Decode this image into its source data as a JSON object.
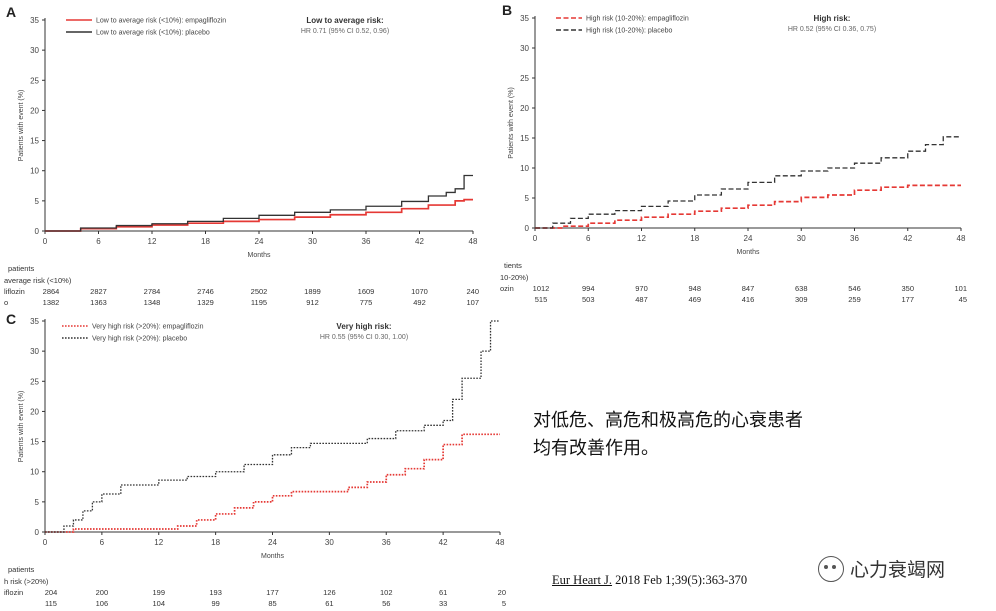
{
  "colors": {
    "empagliflozin": "#e53935",
    "placebo": "#333333"
  },
  "caption": {
    "line1": "对低危、高危和极高危的心衰患者",
    "line2": "均有改善作用。"
  },
  "citation": {
    "journal": "Eur Heart J.",
    "rest": " 2018 Feb 1;39(5):363-370"
  },
  "brand": {
    "name": "心力衰竭网"
  },
  "chart_data": [
    {
      "panel": "A",
      "type": "line",
      "title": "Low to average risk:",
      "subtitle": "HR 0.71 (95% CI 0.52, 0.96)",
      "xlabel": "Months",
      "ylabel": "Patients with event (%)",
      "xlim": [
        0,
        48
      ],
      "ylim": [
        0,
        35
      ],
      "xticks": [
        "0",
        "6",
        "12",
        "18",
        "24",
        "30",
        "36",
        "42",
        "48"
      ],
      "yticks": [
        "0",
        "5",
        "10",
        "15",
        "20",
        "25",
        "30",
        "35"
      ],
      "series": [
        {
          "name": "Low to average risk (<10%): empagliflozin",
          "style": "solid",
          "color": "#e53935",
          "x": [
            0,
            4,
            8,
            12,
            16,
            20,
            24,
            28,
            32,
            36,
            40,
            43,
            46,
            47,
            48
          ],
          "y": [
            0,
            0.4,
            0.7,
            1.0,
            1.3,
            1.6,
            1.9,
            2.3,
            2.7,
            3.1,
            3.7,
            4.3,
            5.0,
            5.2,
            5.2
          ]
        },
        {
          "name": "Low to average risk (<10%): placebo",
          "style": "solid",
          "color": "#333333",
          "x": [
            0,
            4,
            8,
            12,
            16,
            20,
            24,
            28,
            32,
            36,
            40,
            43,
            45,
            46,
            47,
            48
          ],
          "y": [
            0,
            0.5,
            0.9,
            1.2,
            1.6,
            2.1,
            2.6,
            3.1,
            3.5,
            4.1,
            4.9,
            5.8,
            6.4,
            7.0,
            9.2,
            9.2
          ]
        }
      ],
      "risk_table": {
        "header": "patients",
        "group": "average risk (<10%)",
        "rows": [
          {
            "label": "liflozin",
            "values": [
              "2864",
              "2827",
              "2784",
              "2746",
              "2502",
              "1899",
              "1609",
              "1070",
              "240"
            ]
          },
          {
            "label": "o",
            "values": [
              "1382",
              "1363",
              "1348",
              "1329",
              "1195",
              "912",
              "775",
              "492",
              "107"
            ]
          }
        ]
      }
    },
    {
      "panel": "B",
      "type": "line",
      "title": "High risk:",
      "subtitle": "HR 0.52 (95% CI 0.36, 0.75)",
      "xlabel": "Months",
      "ylabel": "Patients with event (%)",
      "xlim": [
        0,
        48
      ],
      "ylim": [
        0,
        35
      ],
      "xticks": [
        "0",
        "6",
        "12",
        "18",
        "24",
        "30",
        "36",
        "42",
        "48"
      ],
      "yticks": [
        "0",
        "5",
        "10",
        "15",
        "20",
        "25",
        "30",
        "35"
      ],
      "series": [
        {
          "name": "High risk (10-20%): empagliflozin",
          "style": "dashed",
          "color": "#e53935",
          "x": [
            0,
            3,
            6,
            9,
            12,
            15,
            18,
            21,
            24,
            27,
            30,
            33,
            36,
            39,
            42,
            45,
            48
          ],
          "y": [
            0,
            0.3,
            0.8,
            1.3,
            1.8,
            2.3,
            2.8,
            3.3,
            3.8,
            4.4,
            5.1,
            5.5,
            6.3,
            6.8,
            7.1,
            7.1,
            7.1
          ]
        },
        {
          "name": "High risk (10-20%): placebo",
          "style": "dashed",
          "color": "#333333",
          "x": [
            0,
            2,
            4,
            6,
            9,
            12,
            15,
            18,
            21,
            24,
            27,
            30,
            33,
            36,
            39,
            42,
            44,
            46,
            48
          ],
          "y": [
            0,
            0.8,
            1.6,
            2.3,
            2.9,
            3.6,
            4.5,
            5.5,
            6.5,
            7.6,
            8.7,
            9.5,
            10.0,
            10.8,
            11.7,
            12.8,
            13.9,
            15.2,
            15.2
          ]
        }
      ],
      "risk_table": {
        "header": "tients",
        "group": "10-20%)",
        "rows": [
          {
            "label": "ozin",
            "values": [
              "1012",
              "994",
              "970",
              "948",
              "847",
              "638",
              "546",
              "350",
              "101"
            ]
          },
          {
            "label": "",
            "values": [
              "515",
              "503",
              "487",
              "469",
              "416",
              "309",
              "259",
              "177",
              "45"
            ]
          }
        ]
      }
    },
    {
      "panel": "C",
      "type": "line",
      "title": "Very high risk:",
      "subtitle": "HR 0.55 (95% CI 0.30, 1.00)",
      "xlabel": "Months",
      "ylabel": "Patients with event (%)",
      "xlim": [
        0,
        48
      ],
      "ylim": [
        0,
        35
      ],
      "xticks": [
        "0",
        "6",
        "12",
        "18",
        "24",
        "30",
        "36",
        "42",
        "48"
      ],
      "yticks": [
        "0",
        "5",
        "10",
        "15",
        "20",
        "25",
        "30",
        "35"
      ],
      "series": [
        {
          "name": "Very high risk (>20%): empagliflozin",
          "style": "dotted",
          "color": "#e53935",
          "x": [
            0,
            3,
            6,
            9,
            12,
            14,
            16,
            18,
            20,
            22,
            24,
            26,
            28,
            30,
            32,
            34,
            36,
            38,
            40,
            42,
            44,
            46,
            48
          ],
          "y": [
            0,
            0.5,
            0.5,
            0.5,
            0.5,
            1.0,
            2.0,
            3.0,
            4.0,
            5.0,
            6.0,
            6.7,
            6.7,
            6.7,
            7.4,
            8.3,
            9.5,
            10.5,
            12.0,
            14.5,
            16.2,
            16.2,
            16.2
          ]
        },
        {
          "name": "Very high risk (>20%): placebo",
          "style": "dotted",
          "color": "#333333",
          "x": [
            0,
            2,
            3,
            4,
            5,
            6,
            8,
            10,
            12,
            15,
            18,
            21,
            24,
            26,
            28,
            31,
            34,
            37,
            40,
            42,
            43,
            44,
            45,
            46,
            47,
            48
          ],
          "y": [
            0,
            1.0,
            2.0,
            3.5,
            5.0,
            6.3,
            7.8,
            7.8,
            8.6,
            9.2,
            10.0,
            11.2,
            12.8,
            14.0,
            14.7,
            14.7,
            15.5,
            16.8,
            17.7,
            18.5,
            22.0,
            25.5,
            25.5,
            30.0,
            35.0,
            35.0
          ]
        }
      ],
      "risk_table": {
        "header": "patients",
        "group": "h risk (>20%)",
        "rows": [
          {
            "label": "iflozin",
            "values": [
              "204",
              "200",
              "199",
              "193",
              "177",
              "126",
              "102",
              "61",
              "20"
            ]
          },
          {
            "label": "",
            "values": [
              "115",
              "106",
              "104",
              "99",
              "85",
              "61",
              "56",
              "33",
              "5"
            ]
          }
        ]
      }
    }
  ]
}
